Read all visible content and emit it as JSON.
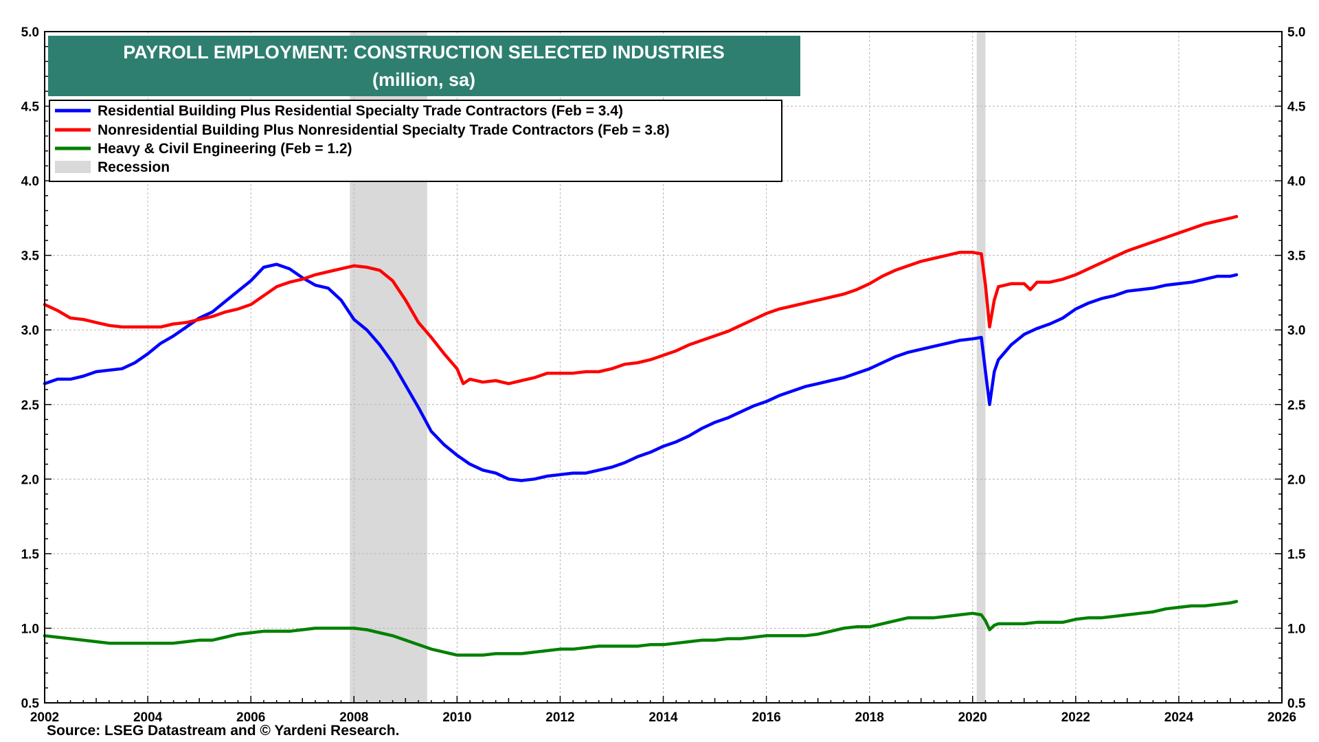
{
  "chart_data": {
    "type": "line",
    "title": "PAYROLL EMPLOYMENT:  CONSTRUCTION SELECTED INDUSTRIES",
    "subtitle": "(million, sa)",
    "source": "Source: LSEG Datastream and © Yardeni Research.",
    "xlim": [
      2002,
      2026
    ],
    "ylim": [
      0.5,
      5.0
    ],
    "x_ticks": [
      "2002",
      "2004",
      "2006",
      "2008",
      "2010",
      "2012",
      "2014",
      "2016",
      "2018",
      "2020",
      "2022",
      "2024",
      "2026"
    ],
    "y_ticks": [
      "0.5",
      "1.0",
      "1.5",
      "2.0",
      "2.5",
      "3.0",
      "3.5",
      "4.0",
      "4.5",
      "5.0"
    ],
    "grid": true,
    "legend_position": "top-left",
    "recessions": [
      {
        "label": "Recession",
        "start": 2007.92,
        "end": 2009.42
      },
      {
        "start": 2020.08,
        "end": 2020.25
      }
    ],
    "series": [
      {
        "name": "Residential Building Plus Residential Specialty Trade Contractors (Feb = 3.4)",
        "color": "#0000ff",
        "points": [
          [
            2002.0,
            2.64
          ],
          [
            2002.25,
            2.67
          ],
          [
            2002.5,
            2.67
          ],
          [
            2002.75,
            2.69
          ],
          [
            2003.0,
            2.72
          ],
          [
            2003.25,
            2.73
          ],
          [
            2003.5,
            2.74
          ],
          [
            2003.75,
            2.78
          ],
          [
            2004.0,
            2.84
          ],
          [
            2004.25,
            2.91
          ],
          [
            2004.5,
            2.96
          ],
          [
            2004.75,
            3.02
          ],
          [
            2005.0,
            3.08
          ],
          [
            2005.25,
            3.12
          ],
          [
            2005.5,
            3.19
          ],
          [
            2005.75,
            3.26
          ],
          [
            2006.0,
            3.33
          ],
          [
            2006.25,
            3.42
          ],
          [
            2006.5,
            3.44
          ],
          [
            2006.75,
            3.41
          ],
          [
            2007.0,
            3.35
          ],
          [
            2007.25,
            3.3
          ],
          [
            2007.5,
            3.28
          ],
          [
            2007.75,
            3.2
          ],
          [
            2008.0,
            3.07
          ],
          [
            2008.25,
            3.0
          ],
          [
            2008.5,
            2.9
          ],
          [
            2008.75,
            2.78
          ],
          [
            2009.0,
            2.63
          ],
          [
            2009.25,
            2.48
          ],
          [
            2009.5,
            2.32
          ],
          [
            2009.75,
            2.23
          ],
          [
            2010.0,
            2.16
          ],
          [
            2010.25,
            2.1
          ],
          [
            2010.5,
            2.06
          ],
          [
            2010.75,
            2.04
          ],
          [
            2011.0,
            2.0
          ],
          [
            2011.25,
            1.99
          ],
          [
            2011.5,
            2.0
          ],
          [
            2011.75,
            2.02
          ],
          [
            2012.0,
            2.03
          ],
          [
            2012.25,
            2.04
          ],
          [
            2012.5,
            2.04
          ],
          [
            2012.75,
            2.06
          ],
          [
            2013.0,
            2.08
          ],
          [
            2013.25,
            2.11
          ],
          [
            2013.5,
            2.15
          ],
          [
            2013.75,
            2.18
          ],
          [
            2014.0,
            2.22
          ],
          [
            2014.25,
            2.25
          ],
          [
            2014.5,
            2.29
          ],
          [
            2014.75,
            2.34
          ],
          [
            2015.0,
            2.38
          ],
          [
            2015.25,
            2.41
          ],
          [
            2015.5,
            2.45
          ],
          [
            2015.75,
            2.49
          ],
          [
            2016.0,
            2.52
          ],
          [
            2016.25,
            2.56
          ],
          [
            2016.5,
            2.59
          ],
          [
            2016.75,
            2.62
          ],
          [
            2017.0,
            2.64
          ],
          [
            2017.25,
            2.66
          ],
          [
            2017.5,
            2.68
          ],
          [
            2017.75,
            2.71
          ],
          [
            2018.0,
            2.74
          ],
          [
            2018.25,
            2.78
          ],
          [
            2018.5,
            2.82
          ],
          [
            2018.75,
            2.85
          ],
          [
            2019.0,
            2.87
          ],
          [
            2019.25,
            2.89
          ],
          [
            2019.5,
            2.91
          ],
          [
            2019.75,
            2.93
          ],
          [
            2020.0,
            2.94
          ],
          [
            2020.17,
            2.95
          ],
          [
            2020.25,
            2.72
          ],
          [
            2020.33,
            2.5
          ],
          [
            2020.42,
            2.72
          ],
          [
            2020.5,
            2.8
          ],
          [
            2020.75,
            2.9
          ],
          [
            2021.0,
            2.97
          ],
          [
            2021.25,
            3.01
          ],
          [
            2021.5,
            3.04
          ],
          [
            2021.75,
            3.08
          ],
          [
            2022.0,
            3.14
          ],
          [
            2022.25,
            3.18
          ],
          [
            2022.5,
            3.21
          ],
          [
            2022.75,
            3.23
          ],
          [
            2023.0,
            3.26
          ],
          [
            2023.25,
            3.27
          ],
          [
            2023.5,
            3.28
          ],
          [
            2023.75,
            3.3
          ],
          [
            2024.0,
            3.31
          ],
          [
            2024.25,
            3.32
          ],
          [
            2024.5,
            3.34
          ],
          [
            2024.75,
            3.36
          ],
          [
            2025.0,
            3.36
          ],
          [
            2025.12,
            3.37
          ]
        ]
      },
      {
        "name": "Nonresidential Building Plus Nonresidential Specialty Trade Contractors (Feb = 3.8)",
        "color": "#ff0000",
        "points": [
          [
            2002.0,
            3.17
          ],
          [
            2002.25,
            3.13
          ],
          [
            2002.5,
            3.08
          ],
          [
            2002.75,
            3.07
          ],
          [
            2003.0,
            3.05
          ],
          [
            2003.25,
            3.03
          ],
          [
            2003.5,
            3.02
          ],
          [
            2003.75,
            3.02
          ],
          [
            2004.0,
            3.02
          ],
          [
            2004.25,
            3.02
          ],
          [
            2004.5,
            3.04
          ],
          [
            2004.75,
            3.05
          ],
          [
            2005.0,
            3.07
          ],
          [
            2005.25,
            3.09
          ],
          [
            2005.5,
            3.12
          ],
          [
            2005.75,
            3.14
          ],
          [
            2006.0,
            3.17
          ],
          [
            2006.25,
            3.23
          ],
          [
            2006.5,
            3.29
          ],
          [
            2006.75,
            3.32
          ],
          [
            2007.0,
            3.34
          ],
          [
            2007.25,
            3.37
          ],
          [
            2007.5,
            3.39
          ],
          [
            2007.75,
            3.41
          ],
          [
            2008.0,
            3.43
          ],
          [
            2008.25,
            3.42
          ],
          [
            2008.5,
            3.4
          ],
          [
            2008.75,
            3.33
          ],
          [
            2009.0,
            3.2
          ],
          [
            2009.25,
            3.05
          ],
          [
            2009.5,
            2.95
          ],
          [
            2009.75,
            2.84
          ],
          [
            2010.0,
            2.74
          ],
          [
            2010.12,
            2.64
          ],
          [
            2010.25,
            2.67
          ],
          [
            2010.5,
            2.65
          ],
          [
            2010.75,
            2.66
          ],
          [
            2011.0,
            2.64
          ],
          [
            2011.25,
            2.66
          ],
          [
            2011.5,
            2.68
          ],
          [
            2011.75,
            2.71
          ],
          [
            2012.0,
            2.71
          ],
          [
            2012.25,
            2.71
          ],
          [
            2012.5,
            2.72
          ],
          [
            2012.75,
            2.72
          ],
          [
            2013.0,
            2.74
          ],
          [
            2013.25,
            2.77
          ],
          [
            2013.5,
            2.78
          ],
          [
            2013.75,
            2.8
          ],
          [
            2014.0,
            2.83
          ],
          [
            2014.25,
            2.86
          ],
          [
            2014.5,
            2.9
          ],
          [
            2014.75,
            2.93
          ],
          [
            2015.0,
            2.96
          ],
          [
            2015.25,
            2.99
          ],
          [
            2015.5,
            3.03
          ],
          [
            2015.75,
            3.07
          ],
          [
            2016.0,
            3.11
          ],
          [
            2016.25,
            3.14
          ],
          [
            2016.5,
            3.16
          ],
          [
            2016.75,
            3.18
          ],
          [
            2017.0,
            3.2
          ],
          [
            2017.25,
            3.22
          ],
          [
            2017.5,
            3.24
          ],
          [
            2017.75,
            3.27
          ],
          [
            2018.0,
            3.31
          ],
          [
            2018.25,
            3.36
          ],
          [
            2018.5,
            3.4
          ],
          [
            2018.75,
            3.43
          ],
          [
            2019.0,
            3.46
          ],
          [
            2019.25,
            3.48
          ],
          [
            2019.5,
            3.5
          ],
          [
            2019.75,
            3.52
          ],
          [
            2020.0,
            3.52
          ],
          [
            2020.17,
            3.51
          ],
          [
            2020.25,
            3.3
          ],
          [
            2020.33,
            3.02
          ],
          [
            2020.42,
            3.2
          ],
          [
            2020.5,
            3.29
          ],
          [
            2020.75,
            3.31
          ],
          [
            2021.0,
            3.31
          ],
          [
            2021.12,
            3.27
          ],
          [
            2021.25,
            3.32
          ],
          [
            2021.5,
            3.32
          ],
          [
            2021.75,
            3.34
          ],
          [
            2022.0,
            3.37
          ],
          [
            2022.25,
            3.41
          ],
          [
            2022.5,
            3.45
          ],
          [
            2022.75,
            3.49
          ],
          [
            2023.0,
            3.53
          ],
          [
            2023.25,
            3.56
          ],
          [
            2023.5,
            3.59
          ],
          [
            2023.75,
            3.62
          ],
          [
            2024.0,
            3.65
          ],
          [
            2024.25,
            3.68
          ],
          [
            2024.5,
            3.71
          ],
          [
            2024.75,
            3.73
          ],
          [
            2025.0,
            3.75
          ],
          [
            2025.12,
            3.76
          ]
        ]
      },
      {
        "name": "Heavy & Civil Engineering (Feb = 1.2)",
        "color": "#008000",
        "points": [
          [
            2002.0,
            0.95
          ],
          [
            2002.25,
            0.94
          ],
          [
            2002.5,
            0.93
          ],
          [
            2002.75,
            0.92
          ],
          [
            2003.0,
            0.91
          ],
          [
            2003.25,
            0.9
          ],
          [
            2003.5,
            0.9
          ],
          [
            2003.75,
            0.9
          ],
          [
            2004.0,
            0.9
          ],
          [
            2004.25,
            0.9
          ],
          [
            2004.5,
            0.9
          ],
          [
            2004.75,
            0.91
          ],
          [
            2005.0,
            0.92
          ],
          [
            2005.25,
            0.92
          ],
          [
            2005.5,
            0.94
          ],
          [
            2005.75,
            0.96
          ],
          [
            2006.0,
            0.97
          ],
          [
            2006.25,
            0.98
          ],
          [
            2006.5,
            0.98
          ],
          [
            2006.75,
            0.98
          ],
          [
            2007.0,
            0.99
          ],
          [
            2007.25,
            1.0
          ],
          [
            2007.5,
            1.0
          ],
          [
            2007.75,
            1.0
          ],
          [
            2008.0,
            1.0
          ],
          [
            2008.25,
            0.99
          ],
          [
            2008.5,
            0.97
          ],
          [
            2008.75,
            0.95
          ],
          [
            2009.0,
            0.92
          ],
          [
            2009.25,
            0.89
          ],
          [
            2009.5,
            0.86
          ],
          [
            2009.75,
            0.84
          ],
          [
            2010.0,
            0.82
          ],
          [
            2010.25,
            0.82
          ],
          [
            2010.5,
            0.82
          ],
          [
            2010.75,
            0.83
          ],
          [
            2011.0,
            0.83
          ],
          [
            2011.25,
            0.83
          ],
          [
            2011.5,
            0.84
          ],
          [
            2011.75,
            0.85
          ],
          [
            2012.0,
            0.86
          ],
          [
            2012.25,
            0.86
          ],
          [
            2012.5,
            0.87
          ],
          [
            2012.75,
            0.88
          ],
          [
            2013.0,
            0.88
          ],
          [
            2013.25,
            0.88
          ],
          [
            2013.5,
            0.88
          ],
          [
            2013.75,
            0.89
          ],
          [
            2014.0,
            0.89
          ],
          [
            2014.25,
            0.9
          ],
          [
            2014.5,
            0.91
          ],
          [
            2014.75,
            0.92
          ],
          [
            2015.0,
            0.92
          ],
          [
            2015.25,
            0.93
          ],
          [
            2015.5,
            0.93
          ],
          [
            2015.75,
            0.94
          ],
          [
            2016.0,
            0.95
          ],
          [
            2016.25,
            0.95
          ],
          [
            2016.5,
            0.95
          ],
          [
            2016.75,
            0.95
          ],
          [
            2017.0,
            0.96
          ],
          [
            2017.25,
            0.98
          ],
          [
            2017.5,
            1.0
          ],
          [
            2017.75,
            1.01
          ],
          [
            2018.0,
            1.01
          ],
          [
            2018.25,
            1.03
          ],
          [
            2018.5,
            1.05
          ],
          [
            2018.75,
            1.07
          ],
          [
            2019.0,
            1.07
          ],
          [
            2019.25,
            1.07
          ],
          [
            2019.5,
            1.08
          ],
          [
            2019.75,
            1.09
          ],
          [
            2020.0,
            1.1
          ],
          [
            2020.17,
            1.09
          ],
          [
            2020.25,
            1.05
          ],
          [
            2020.33,
            0.99
          ],
          [
            2020.42,
            1.02
          ],
          [
            2020.5,
            1.03
          ],
          [
            2020.75,
            1.03
          ],
          [
            2021.0,
            1.03
          ],
          [
            2021.25,
            1.04
          ],
          [
            2021.5,
            1.04
          ],
          [
            2021.75,
            1.04
          ],
          [
            2022.0,
            1.06
          ],
          [
            2022.25,
            1.07
          ],
          [
            2022.5,
            1.07
          ],
          [
            2022.75,
            1.08
          ],
          [
            2023.0,
            1.09
          ],
          [
            2023.25,
            1.1
          ],
          [
            2023.5,
            1.11
          ],
          [
            2023.75,
            1.13
          ],
          [
            2024.0,
            1.14
          ],
          [
            2024.25,
            1.15
          ],
          [
            2024.5,
            1.15
          ],
          [
            2024.75,
            1.16
          ],
          [
            2025.0,
            1.17
          ],
          [
            2025.12,
            1.18
          ]
        ]
      }
    ]
  }
}
